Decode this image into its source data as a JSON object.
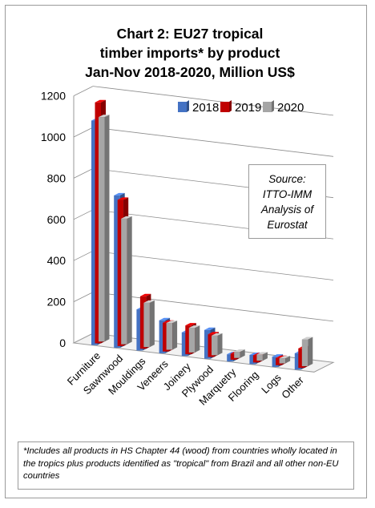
{
  "chart_data": {
    "type": "bar",
    "title_lines": [
      "Chart 2: EU27 tropical",
      "timber imports* by product",
      "Jan-Nov 2018-2020, Million US$"
    ],
    "categories": [
      "Furniture",
      "Sawnwood",
      "Mouldings",
      "Veneers",
      "Joinery",
      "Plywood",
      "Marquetry",
      "Flooring",
      "Logs",
      "Other"
    ],
    "series": [
      {
        "name": "2018",
        "color": "#4472C4",
        "values": [
          1090,
          740,
          200,
          160,
          115,
          140,
          35,
          45,
          50,
          80
        ]
      },
      {
        "name": "2019",
        "color": "#C00000",
        "values": [
          1170,
          710,
          255,
          140,
          140,
          110,
          30,
          35,
          35,
          95
        ]
      },
      {
        "name": "2020",
        "color": "#A6A6A6",
        "values": [
          1090,
          610,
          215,
          130,
          120,
          95,
          30,
          30,
          25,
          130
        ]
      }
    ],
    "y_ticks": [
      "0",
      "200",
      "400",
      "600",
      "800",
      "1000",
      "1200"
    ],
    "ylim": [
      0,
      1200
    ],
    "grid": true,
    "legend_position": "top-right"
  },
  "source_box": {
    "lines": [
      "Source:",
      "ITTO-IMM",
      "Analysis of",
      "Eurostat"
    ]
  },
  "footnote": "*Includes all products in HS Chapter 44 (wood) from countries wholly located in the tropics plus products identified as \"tropical\" from Brazil and all other non-EU countries"
}
